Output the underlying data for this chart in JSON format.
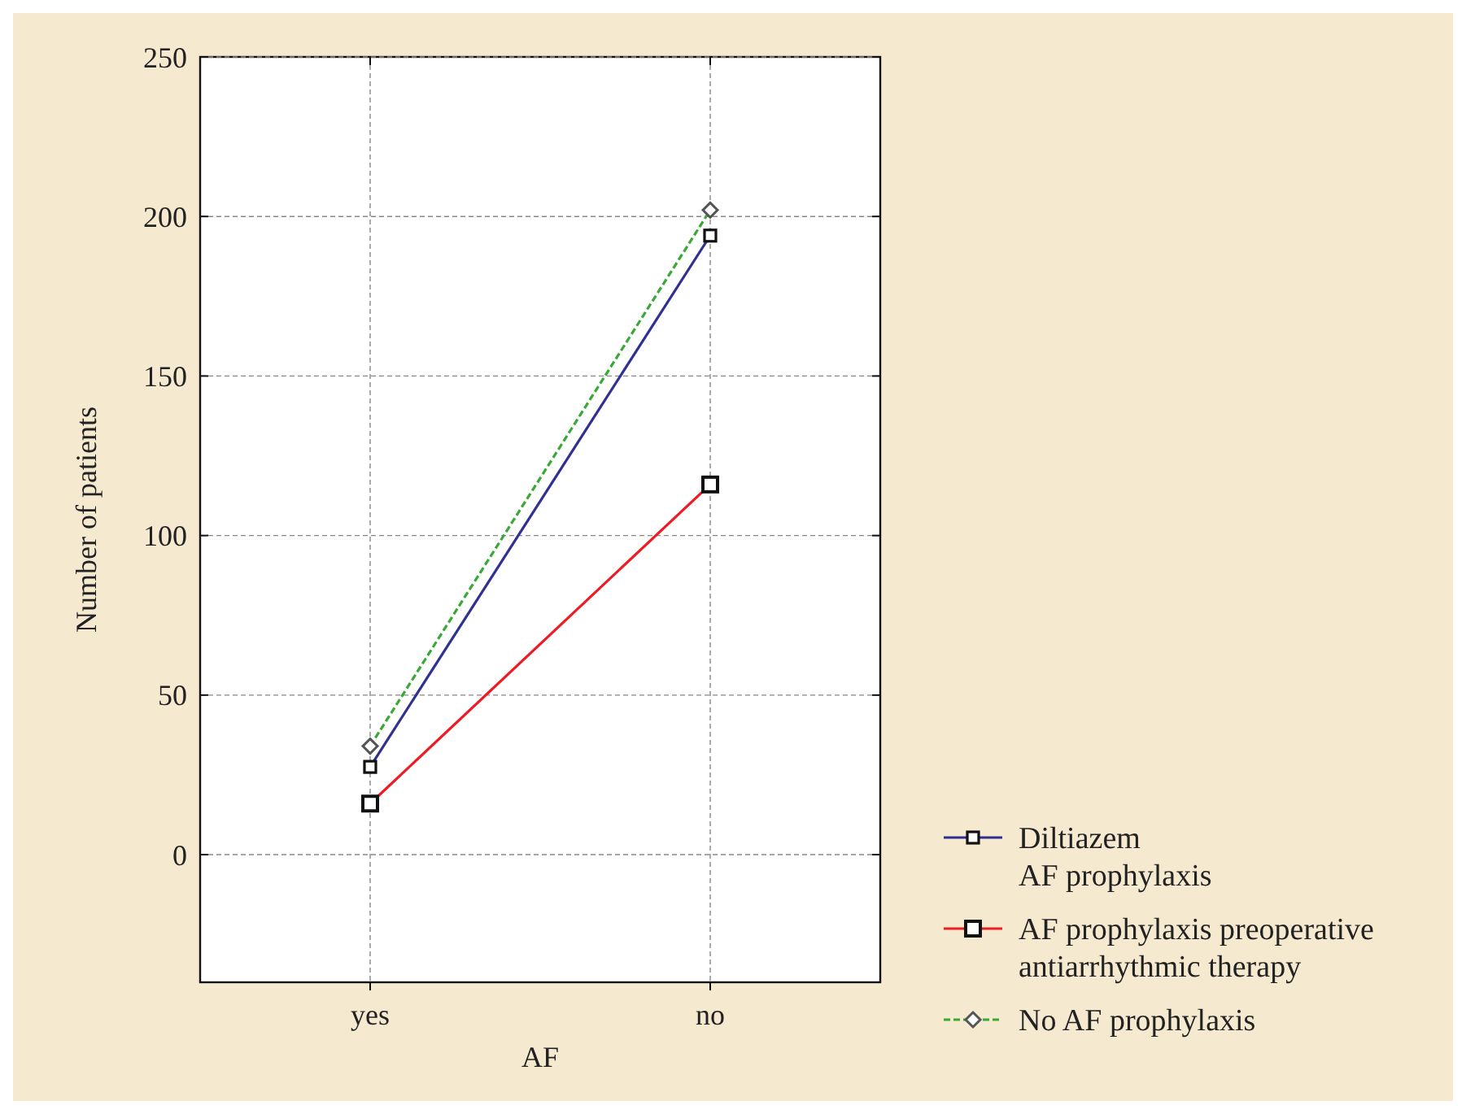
{
  "chart_data": {
    "type": "line",
    "xlabel": "AF",
    "ylabel": "Number of patients",
    "categories": [
      "yes",
      "no"
    ],
    "series": [
      {
        "name": "Diltiazem\nAF prophylaxis",
        "color": "#2e3192",
        "values": [
          27.5,
          194
        ],
        "marker": "square",
        "line_style": "solid"
      },
      {
        "name": "AF prophylaxis preoperative\nantiarrhythmic therapy",
        "color": "#ed1c24",
        "values": [
          16,
          116
        ],
        "marker": "square",
        "line_style": "solid"
      },
      {
        "name": "No AF prophylaxis",
        "color": "#39a935",
        "values": [
          34,
          202
        ],
        "marker": "diamond",
        "line_style": "dashed"
      }
    ],
    "ylim": [
      -40,
      250
    ],
    "yticks": [
      0,
      50,
      100,
      150,
      200,
      250
    ],
    "grid": true,
    "legend": "bottom right"
  }
}
